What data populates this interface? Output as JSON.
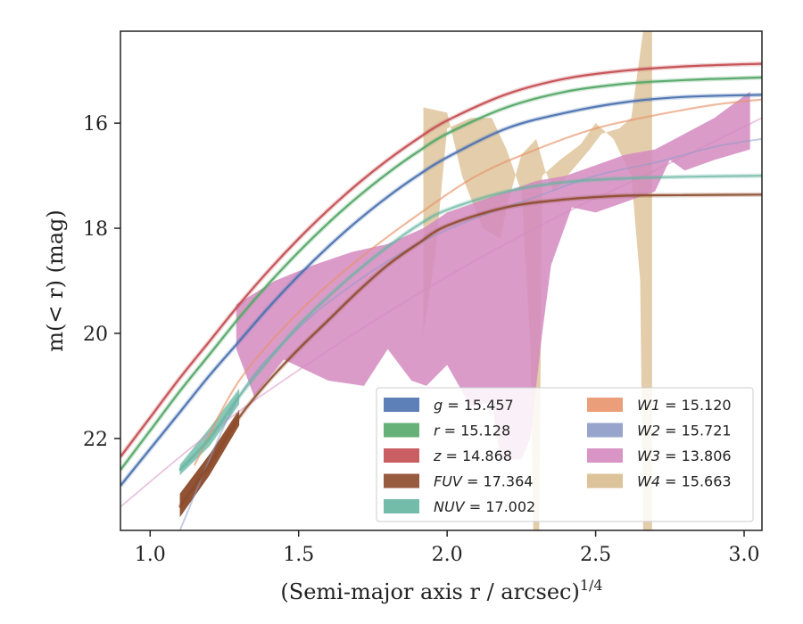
{
  "chart_data": {
    "type": "line",
    "xlabel": "(Semi-major axis r / arcsec)",
    "xlabel_sup": "1/4",
    "ylabel": "m(< r) (mag)",
    "xlim": [
      0.9,
      3.06
    ],
    "ylim": [
      23.75,
      14.25
    ],
    "y_inverted": true,
    "grid": false,
    "legend_placement": "lower-right",
    "x_ticks": [
      "1.0",
      "1.5",
      "2.0",
      "2.5",
      "3.0"
    ],
    "y_ticks": [
      "16",
      "18",
      "20",
      "22"
    ],
    "series": [
      {
        "name": "g = 15.457",
        "label_var": "g",
        "label_val": "= 15.457",
        "color": "#4c72b0",
        "x": [
          0.9,
          1.0,
          1.1,
          1.2,
          1.3,
          1.4,
          1.5,
          1.6,
          1.7,
          1.8,
          1.9,
          2.0,
          2.2,
          2.4,
          2.6,
          2.8,
          3.06
        ],
        "y": [
          22.9,
          22.2,
          21.5,
          20.8,
          20.15,
          19.5,
          18.9,
          18.35,
          17.85,
          17.4,
          17.0,
          16.65,
          16.1,
          15.8,
          15.6,
          15.5,
          15.46
        ]
      },
      {
        "name": "r = 15.128",
        "label_var": "r",
        "label_val": "= 15.128",
        "color": "#55a868",
        "x": [
          0.9,
          1.0,
          1.1,
          1.2,
          1.3,
          1.4,
          1.5,
          1.6,
          1.7,
          1.8,
          1.9,
          2.0,
          2.2,
          2.4,
          2.6,
          2.8,
          3.06
        ],
        "y": [
          22.6,
          21.85,
          21.1,
          20.4,
          19.7,
          19.05,
          18.45,
          17.9,
          17.4,
          16.95,
          16.55,
          16.2,
          15.7,
          15.4,
          15.25,
          15.18,
          15.13
        ]
      },
      {
        "name": "z = 14.868",
        "label_var": "z",
        "label_val": "= 14.868",
        "color": "#c44e52",
        "x": [
          0.9,
          1.0,
          1.1,
          1.2,
          1.3,
          1.4,
          1.5,
          1.6,
          1.7,
          1.8,
          1.9,
          2.0,
          2.2,
          2.4,
          2.6,
          2.8,
          3.06
        ],
        "y": [
          22.35,
          21.6,
          20.85,
          20.15,
          19.45,
          18.8,
          18.2,
          17.65,
          17.15,
          16.7,
          16.3,
          15.95,
          15.45,
          15.15,
          15.0,
          14.92,
          14.87
        ]
      },
      {
        "name": "FUV = 17.364",
        "label_var": "FUV",
        "label_val": "= 17.364",
        "color": "#8c4a2a",
        "x": [
          1.1,
          1.2,
          1.3,
          1.4,
          1.5,
          1.6,
          1.7,
          1.8,
          1.9,
          2.0,
          2.2,
          2.4,
          2.6,
          2.8,
          3.06
        ],
        "y": [
          23.3,
          22.5,
          21.6,
          20.9,
          20.3,
          19.75,
          19.2,
          18.7,
          18.3,
          17.95,
          17.6,
          17.45,
          17.38,
          17.37,
          17.36
        ]
      },
      {
        "name": "NUV = 17.002",
        "label_var": "NUV",
        "label_val": "= 17.002",
        "color": "#64b5a0",
        "x": [
          1.1,
          1.2,
          1.3,
          1.4,
          1.5,
          1.6,
          1.7,
          1.8,
          1.9,
          2.0,
          2.2,
          2.4,
          2.6,
          2.8,
          3.06
        ],
        "y": [
          22.6,
          22.0,
          21.2,
          20.5,
          19.85,
          19.3,
          18.8,
          18.35,
          17.95,
          17.65,
          17.3,
          17.12,
          17.05,
          17.02,
          17.0
        ]
      },
      {
        "name": "W1 = 15.120",
        "label_var": "W1",
        "label_val": "= 15.120",
        "color": "#e8936a",
        "x": [
          1.15,
          1.3,
          1.5,
          1.7,
          1.9,
          2.1,
          2.3,
          2.5,
          2.7,
          2.9,
          3.06
        ],
        "y": [
          22.5,
          20.9,
          19.6,
          18.6,
          17.75,
          17.0,
          16.5,
          16.1,
          15.85,
          15.65,
          15.55
        ]
      },
      {
        "name": "W2 = 15.721",
        "label_var": "W2",
        "label_val": "= 15.721",
        "color": "#8e9ac8",
        "x": [
          1.1,
          1.3,
          1.5,
          1.7,
          1.9,
          2.1,
          2.3,
          2.5,
          2.7,
          2.9,
          3.06
        ],
        "y": [
          23.75,
          21.2,
          19.9,
          19.0,
          18.3,
          17.8,
          17.4,
          17.0,
          16.75,
          16.45,
          16.3
        ]
      },
      {
        "name": "W3 = 13.806",
        "label_var": "W3",
        "label_val": "= 13.806",
        "color": "#d48abf",
        "x": [
          0.9,
          1.2,
          1.5,
          1.8,
          2.1,
          2.4,
          2.7,
          3.06
        ],
        "y": [
          23.3,
          21.9,
          20.7,
          19.6,
          18.6,
          17.7,
          16.9,
          15.9
        ]
      },
      {
        "name": "W4 = 15.663",
        "label_var": "W4",
        "label_val": "= 15.663",
        "color": "#d9bc8e",
        "x": [
          1.92,
          2.1,
          2.3,
          2.5,
          2.7
        ],
        "y": [
          16.0,
          16.5,
          16.2,
          16.8,
          16.5
        ]
      }
    ]
  }
}
